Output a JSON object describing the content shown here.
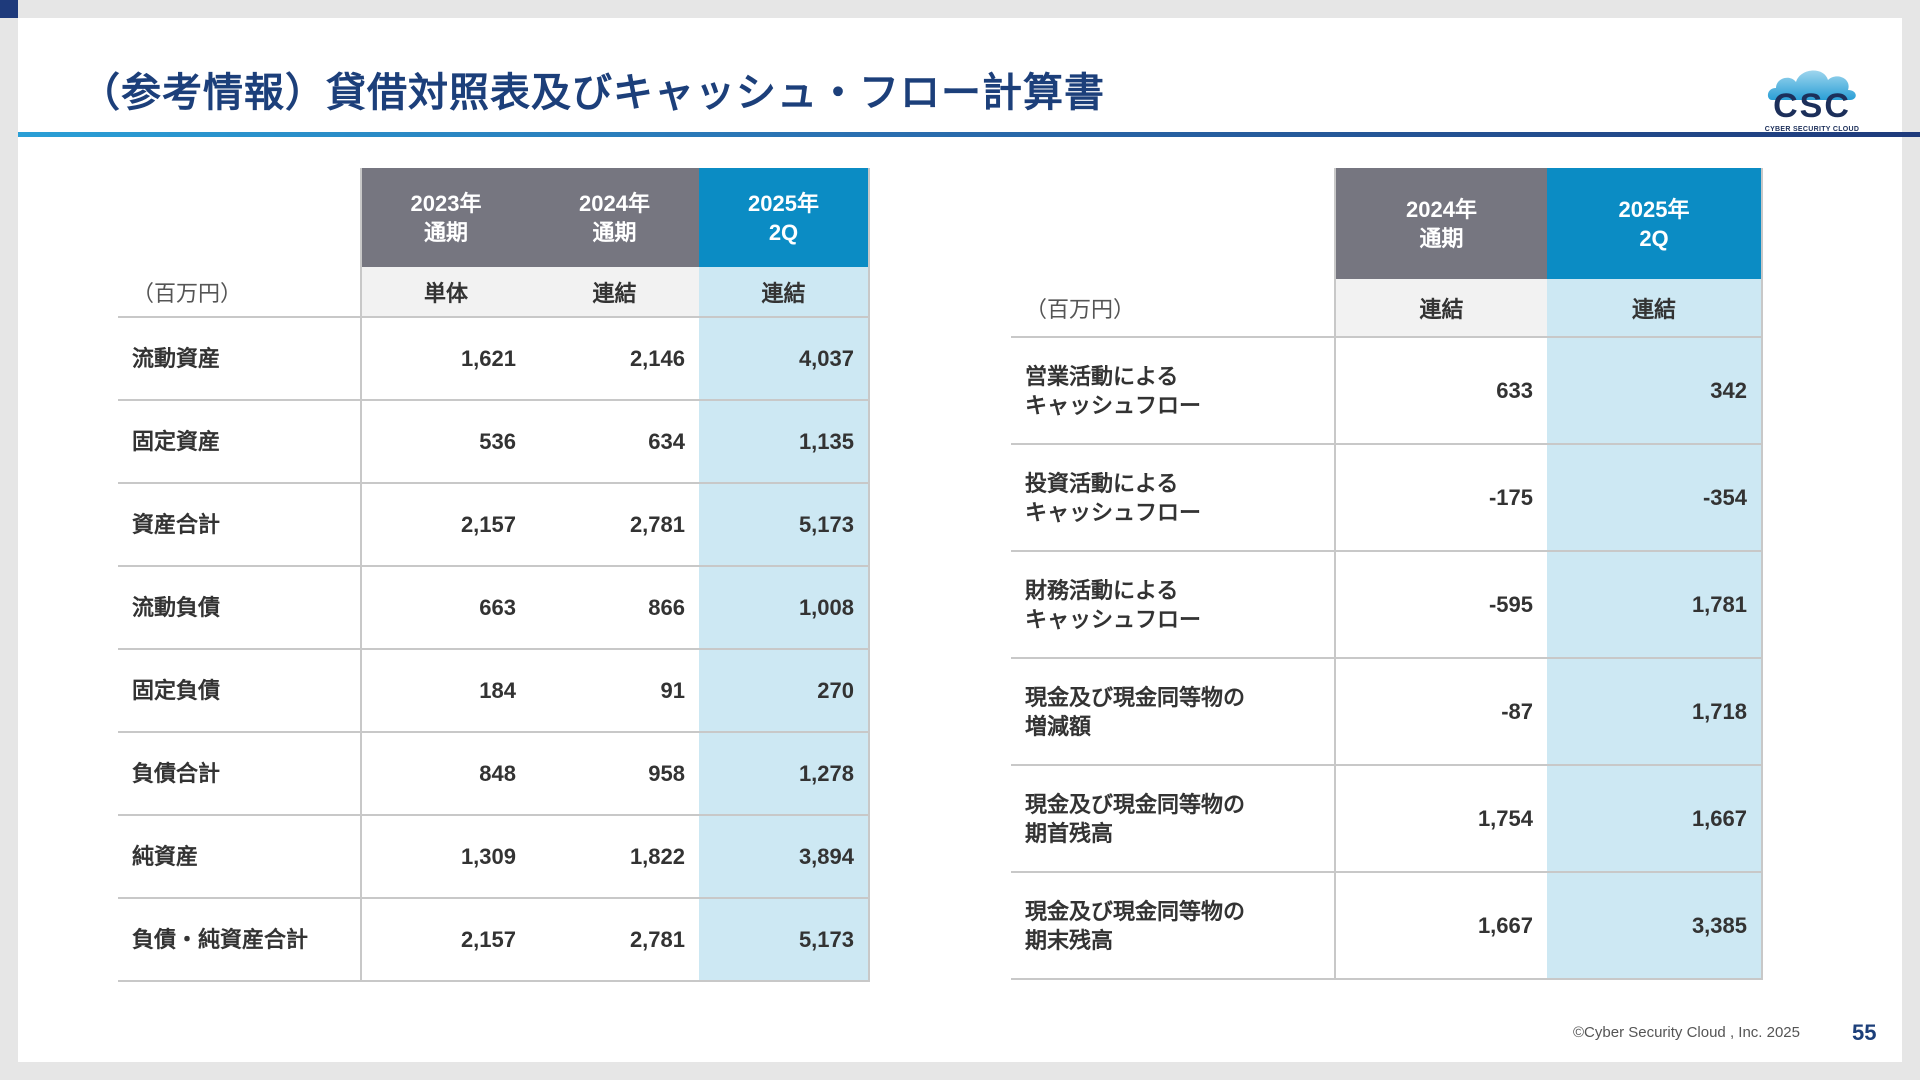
{
  "title": "（参考情報）貸借対照表及びキャッシュ・フロー計算書",
  "logo": {
    "text": "CSC",
    "subtitle": "CYBER SECURITY CLOUD"
  },
  "colors": {
    "title": "#1c3f7a",
    "header_gray": "#767680",
    "header_blue": "#0b8cc4",
    "highlight_blue": "#cde8f3"
  },
  "balance_sheet": {
    "unit": "（百万円）",
    "columns": [
      {
        "year": "2023年",
        "period": "通期",
        "basis": "単体"
      },
      {
        "year": "2024年",
        "period": "通期",
        "basis": "連結"
      },
      {
        "year": "2025年",
        "period": "2Q",
        "basis": "連結"
      }
    ],
    "rows": [
      {
        "label": "流動資産",
        "values": [
          "1,621",
          "2,146",
          "4,037"
        ]
      },
      {
        "label": "固定資産",
        "values": [
          "536",
          "634",
          "1,135"
        ]
      },
      {
        "label": "資産合計",
        "values": [
          "2,157",
          "2,781",
          "5,173"
        ]
      },
      {
        "label": "流動負債",
        "values": [
          "663",
          "866",
          "1,008"
        ]
      },
      {
        "label": "固定負債",
        "values": [
          "184",
          "91",
          "270"
        ]
      },
      {
        "label": "負債合計",
        "values": [
          "848",
          "958",
          "1,278"
        ]
      },
      {
        "label": "純資産",
        "values": [
          "1,309",
          "1,822",
          "3,894"
        ]
      },
      {
        "label": "負債・純資産合計",
        "values": [
          "2,157",
          "2,781",
          "5,173"
        ]
      }
    ]
  },
  "cash_flow": {
    "unit": "（百万円）",
    "columns": [
      {
        "year": "2024年",
        "period": "通期",
        "basis": "連結"
      },
      {
        "year": "2025年",
        "period": "2Q",
        "basis": "連結"
      }
    ],
    "rows": [
      {
        "label_line1": "営業活動による",
        "label_line2": "キャッシュフロー",
        "values": [
          "633",
          "342"
        ]
      },
      {
        "label_line1": "投資活動による",
        "label_line2": "キャッシュフロー",
        "values": [
          "-175",
          "-354"
        ]
      },
      {
        "label_line1": "財務活動による",
        "label_line2": "キャッシュフロー",
        "values": [
          "-595",
          "1,781"
        ]
      },
      {
        "label_line1": "現金及び現金同等物の",
        "label_line2": "増減額",
        "values": [
          "-87",
          "1,718"
        ]
      },
      {
        "label_line1": "現金及び現金同等物の",
        "label_line2": "期首残高",
        "values": [
          "1,754",
          "1,667"
        ]
      },
      {
        "label_line1": "現金及び現金同等物の",
        "label_line2": "期末残高",
        "values": [
          "1,667",
          "3,385"
        ]
      }
    ]
  },
  "footer": {
    "copyright": "©Cyber Security Cloud , Inc. 2025",
    "page_number": "55"
  }
}
